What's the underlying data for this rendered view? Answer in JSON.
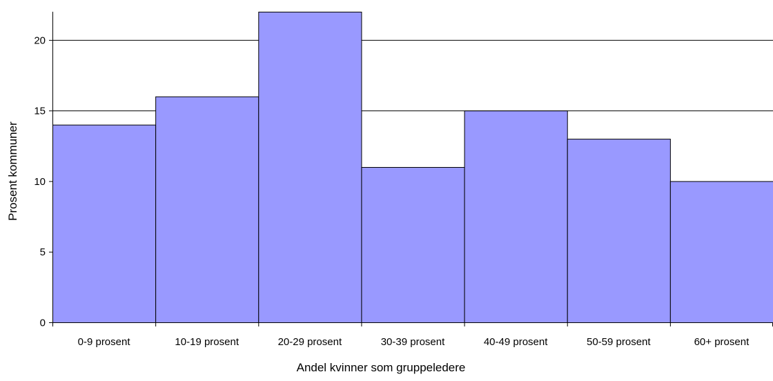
{
  "chart_data": {
    "type": "bar",
    "title": "",
    "xlabel": "Andel kvinner som gruppeledere",
    "ylabel": "Prosent kommuner",
    "categories": [
      "0-9 prosent",
      "10-19 prosent",
      "20-29 prosent",
      "30-39 prosent",
      "40-49 prosent",
      "50-59 prosent",
      "60+ prosent"
    ],
    "values": [
      14,
      16,
      22,
      11,
      15,
      13,
      10
    ],
    "ylim": [
      0,
      22
    ],
    "yticks": [
      0,
      5,
      10,
      15,
      20
    ],
    "gridlines": [
      15,
      20
    ],
    "grid": true,
    "legend": "none",
    "bar_color": "#9999ff",
    "bar_edge_color": "#000000"
  }
}
